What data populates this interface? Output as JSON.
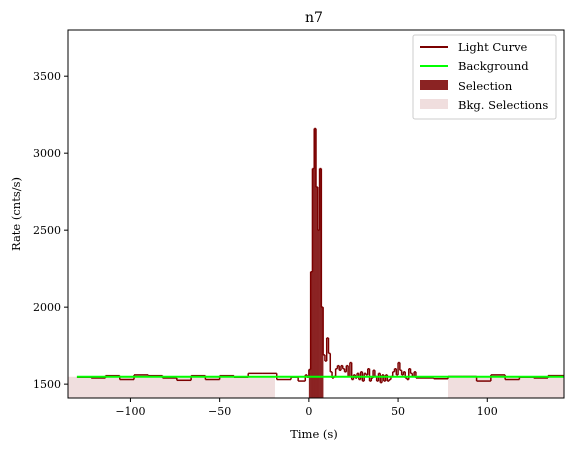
{
  "chart_data": {
    "type": "line",
    "title": "n7",
    "xlabel": "Time (s)",
    "ylabel": "Rate (cnts/s)",
    "xlim": [
      -135,
      143
    ],
    "ylim": [
      1410,
      3800
    ],
    "xticks": [
      -100,
      -50,
      0,
      50,
      100
    ],
    "xtick_labels": [
      "−100",
      "−50",
      "0",
      "50",
      "100"
    ],
    "yticks": [
      1500,
      2000,
      2500,
      3000,
      3500
    ],
    "ytick_labels": [
      "1500",
      "2000",
      "2500",
      "3000",
      "3500"
    ],
    "legend_position": "top-right",
    "legend": [
      {
        "label": "Light Curve",
        "kind": "line",
        "color": "#7b0000"
      },
      {
        "label": "Background",
        "kind": "line",
        "color": "#00ff00"
      },
      {
        "label": "Selection",
        "kind": "patch",
        "color": "#8b2323"
      },
      {
        "label": "Bkg. Selections",
        "kind": "patch",
        "color": "#f0dede"
      }
    ],
    "selection": {
      "x": [
        0,
        8
      ],
      "color": "#8b2323"
    },
    "bkg_selections": [
      {
        "x": [
          -135,
          -19
        ]
      },
      {
        "x": [
          78,
          143
        ]
      }
    ],
    "background": {
      "x": [
        -130,
        143
      ],
      "y": [
        1548,
        1548
      ],
      "color": "#00ff00"
    },
    "light_curve": {
      "color": "#7b0000",
      "edges": [
        -130,
        -122,
        -114,
        -106,
        -98,
        -90,
        -82,
        -74,
        -66,
        -58,
        -50,
        -42,
        -34,
        -26,
        -18,
        -10,
        -6,
        -2,
        -1,
        0,
        1,
        2,
        3,
        4,
        5,
        6,
        7,
        8,
        9,
        10,
        11,
        12,
        13,
        14,
        15,
        16,
        17,
        18,
        19,
        20,
        21,
        22,
        23,
        24,
        25,
        26,
        27,
        28,
        29,
        30,
        31,
        32,
        33,
        34,
        35,
        36,
        37,
        38,
        39,
        40,
        41,
        42,
        43,
        44,
        45,
        46,
        47,
        48,
        49,
        50,
        51,
        52,
        53,
        54,
        55,
        56,
        57,
        58,
        59,
        60,
        62,
        70,
        78,
        86,
        94,
        102,
        110,
        118,
        126,
        134,
        143
      ],
      "rates": [
        1545,
        1540,
        1555,
        1530,
        1560,
        1555,
        1540,
        1525,
        1555,
        1530,
        1555,
        1545,
        1570,
        1570,
        1530,
        1545,
        1520,
        1560,
        1545,
        1595,
        2230,
        2900,
        3160,
        2780,
        2500,
        2900,
        2000,
        1690,
        1650,
        1800,
        1700,
        1580,
        1540,
        1550,
        1600,
        1620,
        1590,
        1620,
        1600,
        1580,
        1620,
        1550,
        1640,
        1530,
        1560,
        1540,
        1570,
        1530,
        1580,
        1520,
        1570,
        1560,
        1600,
        1520,
        1540,
        1590,
        1550,
        1520,
        1570,
        1510,
        1560,
        1520,
        1560,
        1520,
        1530,
        1550,
        1580,
        1600,
        1560,
        1640,
        1590,
        1560,
        1580,
        1540,
        1530,
        1600,
        1570,
        1550,
        1580,
        1540,
        1540,
        1535,
        1550,
        1550,
        1520,
        1560,
        1530,
        1545,
        1540,
        1555
      ]
    }
  }
}
